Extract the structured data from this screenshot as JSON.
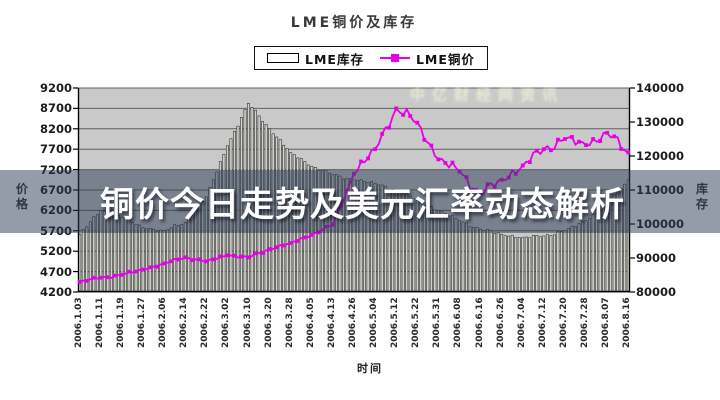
{
  "page": {
    "banner_text": "铜价今日走势及美元汇率动态解析"
  },
  "chart": {
    "title": "LME铜价及库存",
    "legend": [
      {
        "label": "LME库存",
        "type": "bar"
      },
      {
        "label": "LME铜价",
        "type": "line"
      }
    ],
    "watermark": "中亿财经网资讯",
    "x_axis_title": "时间",
    "left_axis_title": "价格",
    "right_axis_title": "库存"
  },
  "chart_data": {
    "type": "bar+line",
    "title": "LME铜价及库存",
    "xlabel": "时间",
    "grid": true,
    "legend_position": "top-center",
    "categories": [
      "2006.1.03",
      "2006.1.11",
      "2006.1.19",
      "2006.1.27",
      "2006.2.06",
      "2006.2.14",
      "2006.2.22",
      "2006.3.02",
      "2006.3.10",
      "2006.3.20",
      "2006.3.28",
      "2006.4.05",
      "2006.4.13",
      "2006.4.26",
      "2006.5.04",
      "2006.5.12",
      "2006.5.22",
      "2006.5.31",
      "2006.6.08",
      "2006.6.16",
      "2006.6.26",
      "2006.7.04",
      "2006.7.12",
      "2006.7.20",
      "2006.7.28",
      "2006.8.07",
      "2006.8.16"
    ],
    "series": [
      {
        "name": "LME库存",
        "type": "bar",
        "axis": "right",
        "values": [
          97000,
          104000,
          102000,
          99000,
          98000,
          100500,
          108000,
          123000,
          135500,
          128000,
          121000,
          117000,
          114500,
          113000,
          112000,
          110000,
          107000,
          104000,
          101000,
          98500,
          97000,
          96000,
          96500,
          98000,
          101000,
          106000,
          113000
        ]
      },
      {
        "name": "LME铜价",
        "type": "line",
        "axis": "left",
        "values": [
          4450,
          4550,
          4620,
          4750,
          4900,
          5050,
          4950,
          5100,
          5050,
          5250,
          5400,
          5600,
          5850,
          7100,
          7700,
          8700,
          8350,
          7450,
          7150,
          6600,
          6950,
          7300,
          7700,
          7950,
          7800,
          8100,
          7620
        ]
      }
    ],
    "left_axis": {
      "label": "价格",
      "min": 4200,
      "max": 9200,
      "tick_step": 500,
      "ticks": [
        9200,
        8700,
        8200,
        7700,
        7200,
        6700,
        6200,
        5700,
        5200,
        4700,
        4200
      ]
    },
    "right_axis": {
      "label": "库存",
      "min": 80000,
      "max": 140000,
      "tick_step": 10000,
      "ticks": [
        140000,
        130000,
        120000,
        110000,
        100000,
        90000,
        80000
      ]
    },
    "sampling_note": "bars are daily values; visible x tick labels mark every 8th trading day; series values sampled at tick dates",
    "colors": {
      "price_line": "#e600e6",
      "bar_fill": "#d2d2ca",
      "bar_stroke": "#222222",
      "plot_bg": "#c9c9c9",
      "grid": "#606060",
      "banner_bg": "rgba(41,57,85,0.5)",
      "banner_text": "#ffffff"
    }
  }
}
